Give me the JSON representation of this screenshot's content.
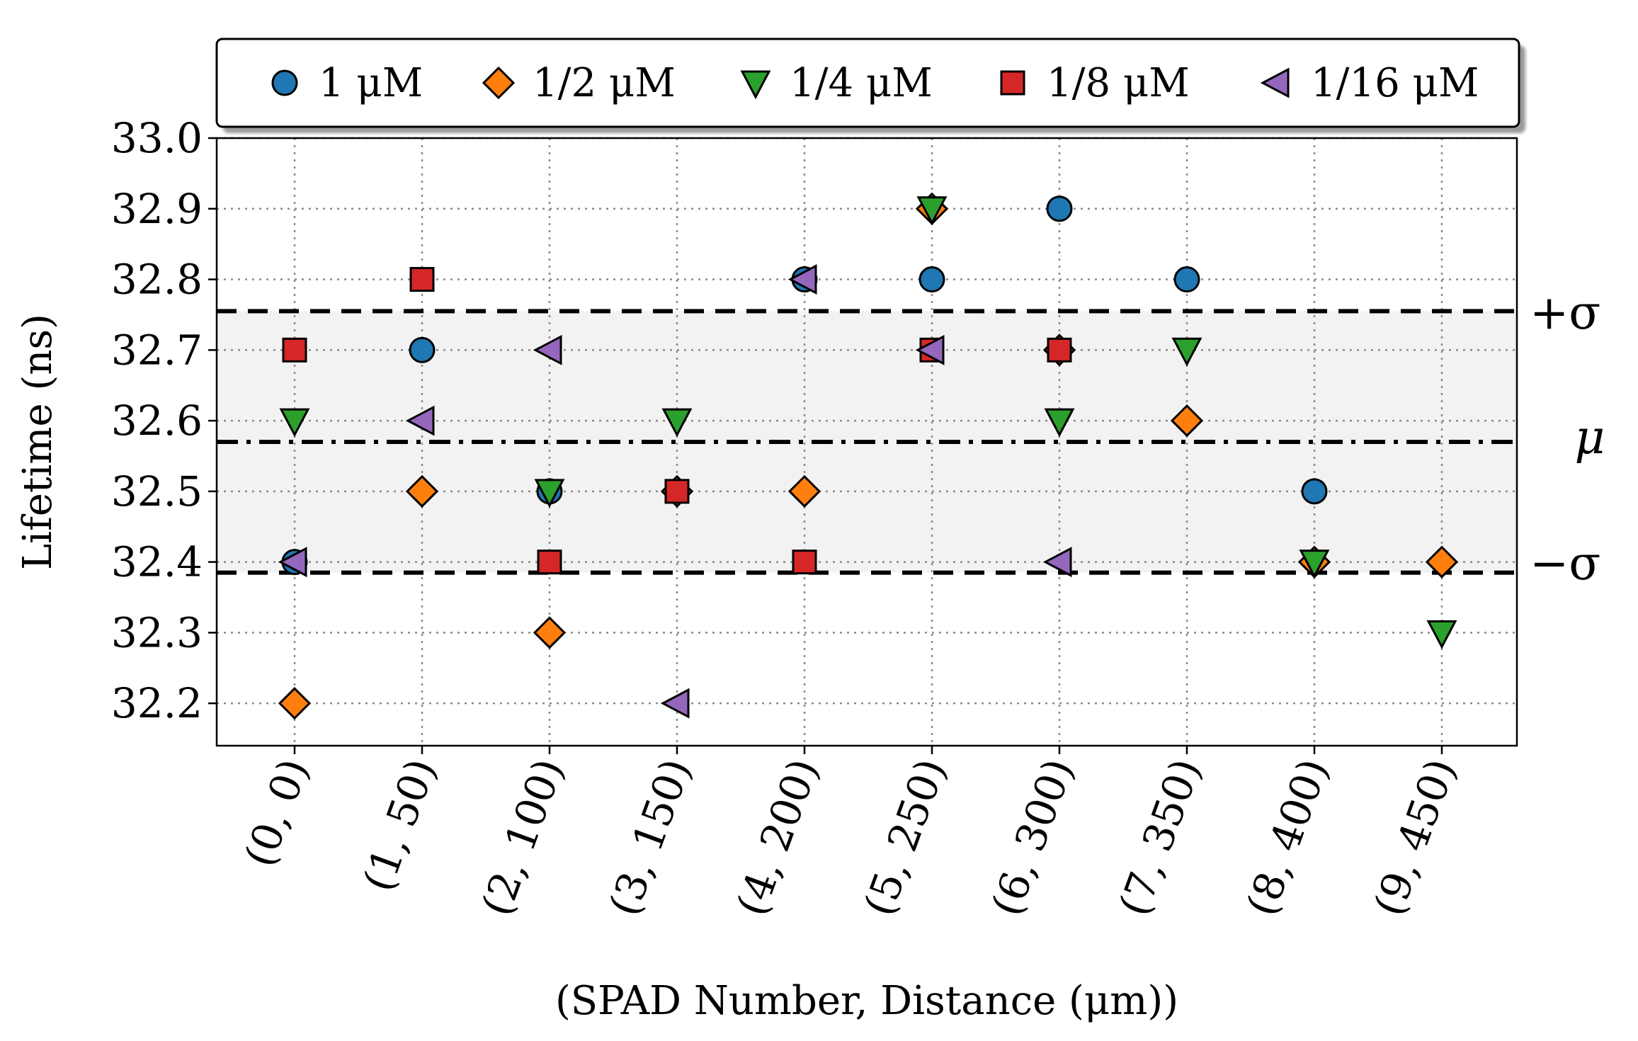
{
  "chart_data": {
    "type": "scatter",
    "title": "",
    "xlabel": "(SPAD Number,  Distance (μm))",
    "ylabel": "Lifetime (ns)",
    "categories": [
      "(0, 0)",
      "(1, 50)",
      "(2, 100)",
      "(3, 150)",
      "(4, 200)",
      "(5, 250)",
      "(6, 300)",
      "(7, 350)",
      "(8, 400)",
      "(9, 450)"
    ],
    "ylim": [
      32.14,
      33.0
    ],
    "yticks": [
      "32.2",
      "32.3",
      "32.4",
      "32.5",
      "32.6",
      "32.7",
      "32.8",
      "32.9",
      "33.0"
    ],
    "grid": true,
    "legend_position": "top",
    "series": [
      {
        "name": "1 μM",
        "marker": "circle",
        "color": "#1f77b4",
        "values": [
          32.4,
          32.7,
          32.5,
          32.5,
          32.8,
          32.8,
          32.9,
          32.8,
          32.5,
          null
        ]
      },
      {
        "name": "1/2 μM",
        "marker": "diamond",
        "color": "#ff7f0e",
        "values": [
          32.2,
          32.5,
          32.3,
          32.5,
          32.5,
          32.9,
          32.7,
          32.6,
          32.4,
          32.4
        ]
      },
      {
        "name": "1/4 μM",
        "marker": "triangle-down",
        "color": "#2ca02c",
        "values": [
          32.6,
          null,
          32.5,
          32.6,
          null,
          32.9,
          32.6,
          32.7,
          32.4,
          32.3
        ]
      },
      {
        "name": "1/8 μM",
        "marker": "square",
        "color": "#d62728",
        "values": [
          32.7,
          32.8,
          32.4,
          32.5,
          32.4,
          32.7,
          32.7,
          null,
          null,
          null
        ]
      },
      {
        "name": "1/16 μM",
        "marker": "triangle-left",
        "color": "#9467bd",
        "values": [
          32.4,
          32.6,
          32.7,
          32.2,
          32.8,
          32.7,
          32.4,
          null,
          null,
          null
        ]
      }
    ],
    "reference_lines": {
      "mean": {
        "label": "μ",
        "value": 32.57
      },
      "plus_sigma": {
        "label": "+σ",
        "value": 32.755
      },
      "minus_sigma": {
        "label": "−σ",
        "value": 32.385
      }
    }
  }
}
